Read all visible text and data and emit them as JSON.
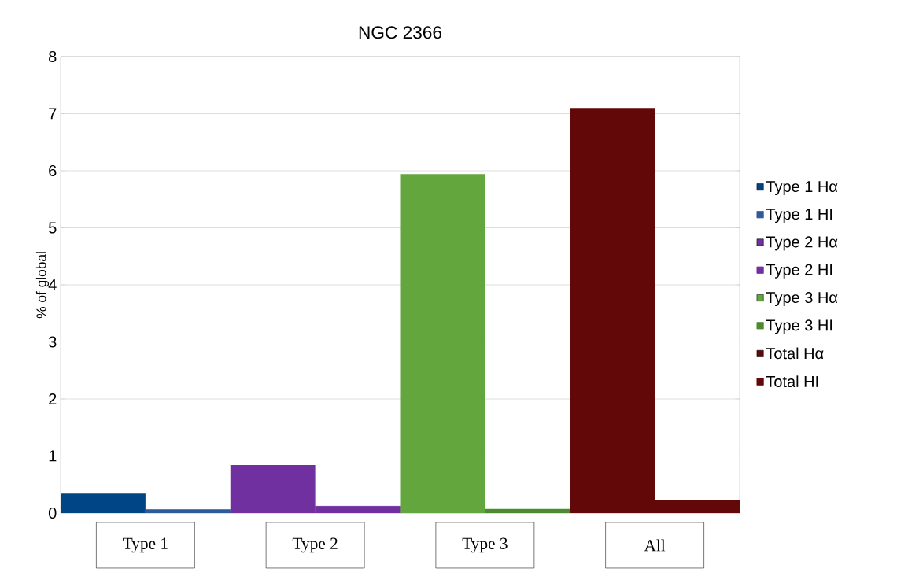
{
  "chart_data": {
    "type": "bar",
    "title": "NGC 2366",
    "ylabel": "% of global",
    "categories": [
      "Type 1",
      "Type 2",
      "Type 3",
      "All"
    ],
    "series": [
      {
        "name": "Type 1 Hα",
        "color": "#004586",
        "values": [
          0.34,
          null,
          null,
          null
        ]
      },
      {
        "name": "Type 1 HI",
        "color": "#2e5a9a",
        "values": [
          0.06,
          null,
          null,
          null
        ]
      },
      {
        "name": "Type 2 Hα",
        "color": "#7030a0",
        "values": [
          null,
          0.84,
          null,
          null
        ]
      },
      {
        "name": "Type 2 HI",
        "color": "#7030a0",
        "values": [
          null,
          0.12,
          null,
          null
        ]
      },
      {
        "name": "Type 3 Hα",
        "color": "#63a63d",
        "values": [
          null,
          null,
          5.94,
          null
        ]
      },
      {
        "name": "Type 3 HI",
        "color": "#4e8a30",
        "values": [
          null,
          null,
          0.07,
          null
        ]
      },
      {
        "name": "Total Hα",
        "color": "#620808",
        "values": [
          null,
          null,
          null,
          7.1
        ]
      },
      {
        "name": "Total HI",
        "color": "#620808",
        "values": [
          null,
          null,
          null,
          0.22
        ]
      }
    ],
    "ylim": [
      0,
      8
    ],
    "yticks": [
      0,
      1,
      2,
      3,
      4,
      5,
      6,
      7,
      8
    ],
    "grid": "y",
    "legend": "right"
  }
}
